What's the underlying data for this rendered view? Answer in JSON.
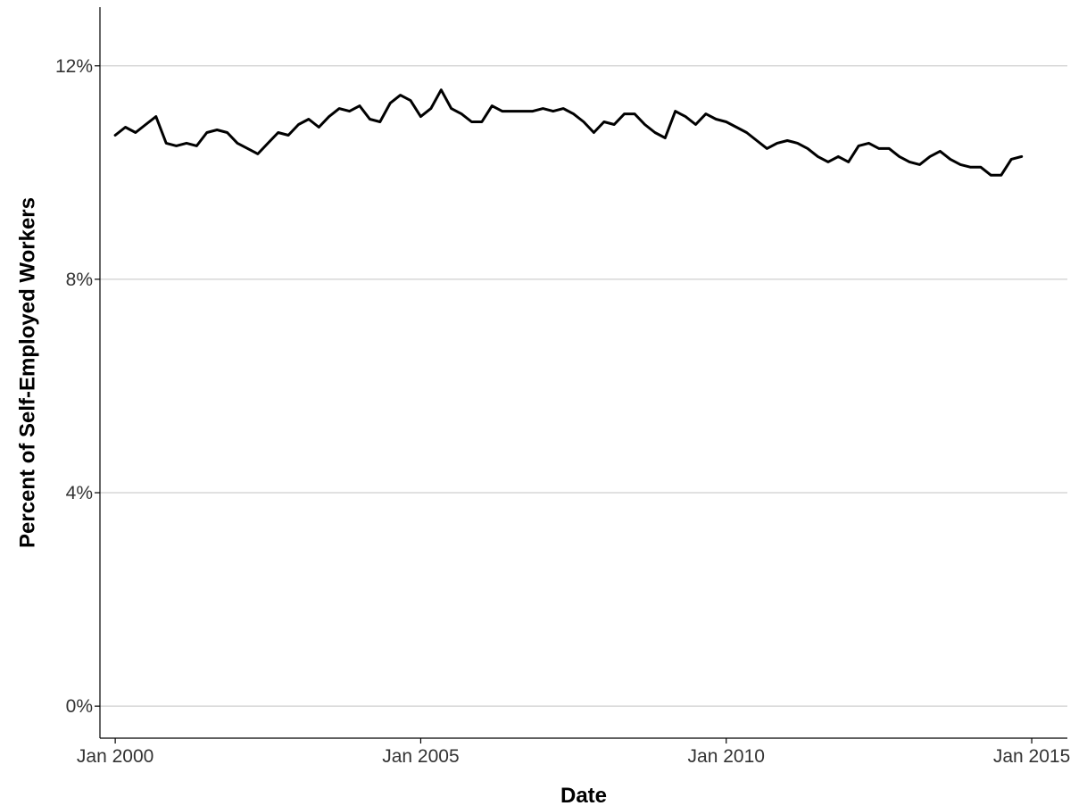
{
  "chart_data": {
    "type": "line",
    "xlabel": "Date",
    "ylabel": "Percent of Self-Employed Workers",
    "x_ticks": [
      {
        "date": "2000-01",
        "label": "Jan 2000"
      },
      {
        "date": "2005-01",
        "label": "Jan 2005"
      },
      {
        "date": "2010-01",
        "label": "Jan 2010"
      },
      {
        "date": "2015-01",
        "label": "Jan 2015"
      }
    ],
    "y_ticks": [
      {
        "value": 0,
        "label": "0%"
      },
      {
        "value": 4,
        "label": "4%"
      },
      {
        "value": 8,
        "label": "8%"
      },
      {
        "value": 12,
        "label": "12%"
      }
    ],
    "xlim": [
      "1999-10",
      "2015-08"
    ],
    "ylim": [
      -0.6,
      13.1
    ],
    "grid": "horizontal",
    "legend": "none",
    "colors": {
      "line": "#000000",
      "grid": "#cfcfcf"
    },
    "series": [
      {
        "x": [
          "2000-01",
          "2000-03",
          "2000-05",
          "2000-07",
          "2000-09",
          "2000-11",
          "2001-01",
          "2001-03",
          "2001-05",
          "2001-07",
          "2001-09",
          "2001-11",
          "2002-01",
          "2002-03",
          "2002-05",
          "2002-07",
          "2002-09",
          "2002-11",
          "2003-01",
          "2003-03",
          "2003-05",
          "2003-07",
          "2003-09",
          "2003-11",
          "2004-01",
          "2004-03",
          "2004-05",
          "2004-07",
          "2004-09",
          "2004-11",
          "2005-01",
          "2005-03",
          "2005-05",
          "2005-07",
          "2005-09",
          "2005-11",
          "2006-01",
          "2006-03",
          "2006-05",
          "2006-07",
          "2006-09",
          "2006-11",
          "2007-01",
          "2007-03",
          "2007-05",
          "2007-07",
          "2007-09",
          "2007-11",
          "2008-01",
          "2008-03",
          "2008-05",
          "2008-07",
          "2008-09",
          "2008-11",
          "2009-01",
          "2009-03",
          "2009-05",
          "2009-07",
          "2009-09",
          "2009-11",
          "2010-01",
          "2010-03",
          "2010-05",
          "2010-07",
          "2010-09",
          "2010-11",
          "2011-01",
          "2011-03",
          "2011-05",
          "2011-07",
          "2011-09",
          "2011-11",
          "2012-01",
          "2012-03",
          "2012-05",
          "2012-07",
          "2012-09",
          "2012-11",
          "2013-01",
          "2013-03",
          "2013-05",
          "2013-07",
          "2013-09",
          "2013-11",
          "2014-01",
          "2014-03",
          "2014-05",
          "2014-07",
          "2014-09",
          "2014-11"
        ],
        "y": [
          10.7,
          10.85,
          10.75,
          10.9,
          11.05,
          10.55,
          10.5,
          10.55,
          10.5,
          10.75,
          10.8,
          10.75,
          10.55,
          10.45,
          10.35,
          10.55,
          10.75,
          10.7,
          10.9,
          11.0,
          10.85,
          11.05,
          11.2,
          11.15,
          11.25,
          11.0,
          10.95,
          11.3,
          11.45,
          11.35,
          11.05,
          11.2,
          11.55,
          11.2,
          11.1,
          10.95,
          10.95,
          11.25,
          11.15,
          11.15,
          11.15,
          11.15,
          11.2,
          11.15,
          11.2,
          11.1,
          10.95,
          10.75,
          10.95,
          10.9,
          11.1,
          11.1,
          10.9,
          10.75,
          10.65,
          11.15,
          11.05,
          10.9,
          11.1,
          11.0,
          10.95,
          10.85,
          10.75,
          10.6,
          10.45,
          10.55,
          10.6,
          10.55,
          10.45,
          10.3,
          10.2,
          10.3,
          10.2,
          10.5,
          10.55,
          10.45,
          10.45,
          10.3,
          10.2,
          10.15,
          10.3,
          10.4,
          10.25,
          10.15,
          10.1,
          10.1,
          9.95,
          9.95,
          10.25,
          10.3
        ]
      }
    ]
  }
}
